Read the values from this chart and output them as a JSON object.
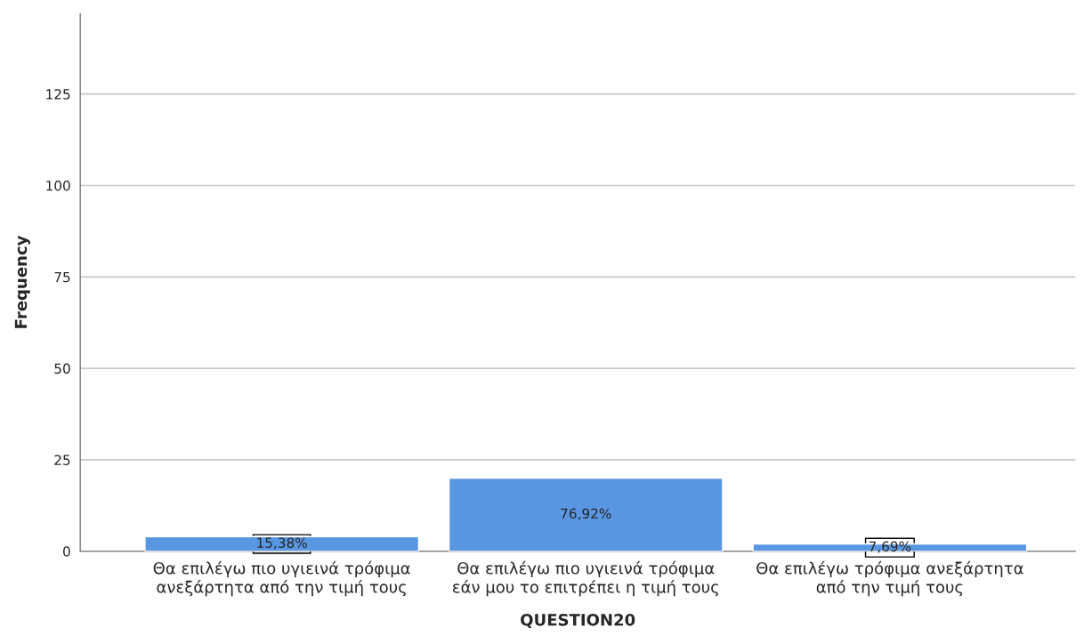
{
  "chart_data": {
    "type": "bar",
    "xlabel": "QUESTION20",
    "ylabel": "Frequency",
    "categories": [
      "Θα επιλέγω πιο υγιεινά τρόφιμα\nανεξάρτητα από την τιμή τους",
      "Θα επιλέγω πιο υγιεινά τρόφιμα\nεάν μου το επιτρέπει η τιμή τους",
      "Θα επιλέγω τρόφιμα ανεξάρτητα\nαπό την τιμή τους"
    ],
    "values": [
      4,
      20,
      2
    ],
    "annotations": [
      "15,38%",
      "76,92%",
      "7,69%"
    ],
    "color": "#5a97e2",
    "ylim": [
      0,
      147
    ],
    "yticks": [
      0,
      25,
      50,
      75,
      100,
      125
    ],
    "grid": "y"
  }
}
